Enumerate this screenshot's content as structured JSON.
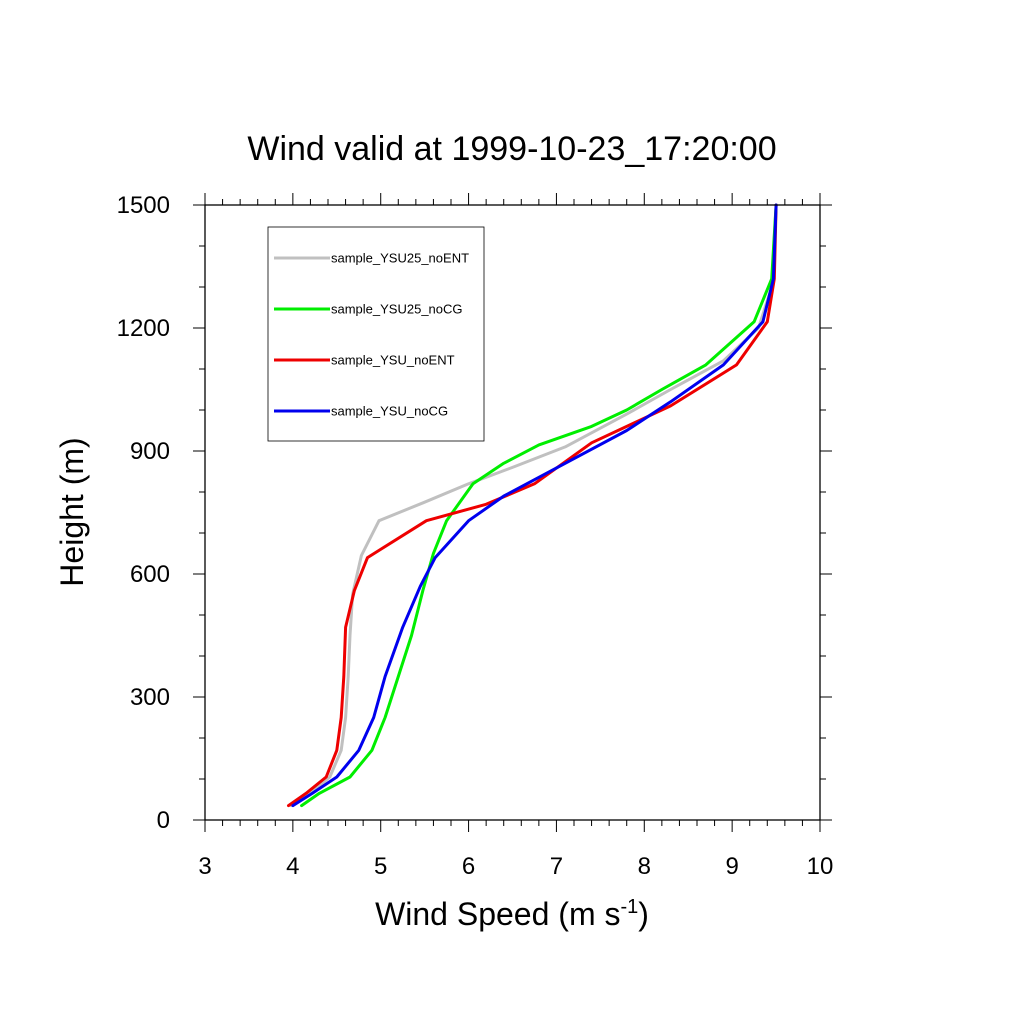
{
  "chart_data": {
    "type": "line",
    "title": "Wind valid at 1999-10-23_17:20:00",
    "xlabel": "Wind Speed (m s",
    "xlabel_sup": "-1",
    "xlabel_end": ")",
    "ylabel": "Height (m)",
    "xlim": [
      3,
      10
    ],
    "ylim": [
      0,
      1500
    ],
    "x_ticks": [
      "3",
      "4",
      "5",
      "6",
      "7",
      "8",
      "9",
      "10"
    ],
    "y_ticks": [
      "0",
      "300",
      "600",
      "900",
      "1200",
      "1500"
    ],
    "legend_position": "top-left",
    "series": [
      {
        "name": "sample_YSU25_noENT",
        "color": "#c0c0c0",
        "points": [
          [
            3.98,
            35
          ],
          [
            4.2,
            65
          ],
          [
            4.42,
            105
          ],
          [
            4.55,
            170
          ],
          [
            4.6,
            250
          ],
          [
            4.63,
            350
          ],
          [
            4.65,
            450
          ],
          [
            4.68,
            550
          ],
          [
            4.78,
            645
          ],
          [
            4.98,
            730
          ],
          [
            5.5,
            775
          ],
          [
            6.0,
            820
          ],
          [
            6.5,
            860
          ],
          [
            7.1,
            910
          ],
          [
            7.8,
            990
          ],
          [
            8.3,
            1050
          ],
          [
            8.9,
            1120
          ],
          [
            9.3,
            1200
          ],
          [
            9.45,
            1300
          ],
          [
            9.5,
            1500
          ]
        ]
      },
      {
        "name": "sample_YSU25_noCG",
        "color": "#00ee00",
        "points": [
          [
            4.1,
            35
          ],
          [
            4.3,
            65
          ],
          [
            4.65,
            105
          ],
          [
            4.9,
            170
          ],
          [
            5.05,
            250
          ],
          [
            5.2,
            350
          ],
          [
            5.35,
            450
          ],
          [
            5.48,
            560
          ],
          [
            5.6,
            650
          ],
          [
            5.75,
            730
          ],
          [
            6.05,
            820
          ],
          [
            6.4,
            870
          ],
          [
            6.8,
            915
          ],
          [
            7.4,
            960
          ],
          [
            7.8,
            1000
          ],
          [
            8.2,
            1050
          ],
          [
            8.7,
            1110
          ],
          [
            9.25,
            1215
          ],
          [
            9.45,
            1320
          ],
          [
            9.5,
            1500
          ]
        ]
      },
      {
        "name": "sample_YSU_noENT",
        "color": "#ee0000",
        "points": [
          [
            3.95,
            35
          ],
          [
            4.15,
            65
          ],
          [
            4.38,
            105
          ],
          [
            4.5,
            170
          ],
          [
            4.55,
            250
          ],
          [
            4.58,
            350
          ],
          [
            4.6,
            470
          ],
          [
            4.7,
            560
          ],
          [
            4.85,
            640
          ],
          [
            5.52,
            730
          ],
          [
            6.2,
            770
          ],
          [
            6.75,
            820
          ],
          [
            7.4,
            920
          ],
          [
            8.3,
            1010
          ],
          [
            9.05,
            1110
          ],
          [
            9.4,
            1215
          ],
          [
            9.48,
            1320
          ],
          [
            9.5,
            1500
          ]
        ]
      },
      {
        "name": "sample_YSU_noCG",
        "color": "#0000ee",
        "points": [
          [
            4.0,
            35
          ],
          [
            4.22,
            65
          ],
          [
            4.5,
            105
          ],
          [
            4.75,
            170
          ],
          [
            4.92,
            250
          ],
          [
            5.05,
            350
          ],
          [
            5.25,
            470
          ],
          [
            5.45,
            570
          ],
          [
            5.62,
            640
          ],
          [
            6.0,
            730
          ],
          [
            6.4,
            790
          ],
          [
            7.1,
            870
          ],
          [
            7.8,
            950
          ],
          [
            8.3,
            1020
          ],
          [
            8.9,
            1110
          ],
          [
            9.35,
            1215
          ],
          [
            9.47,
            1320
          ],
          [
            9.5,
            1500
          ]
        ]
      }
    ]
  }
}
